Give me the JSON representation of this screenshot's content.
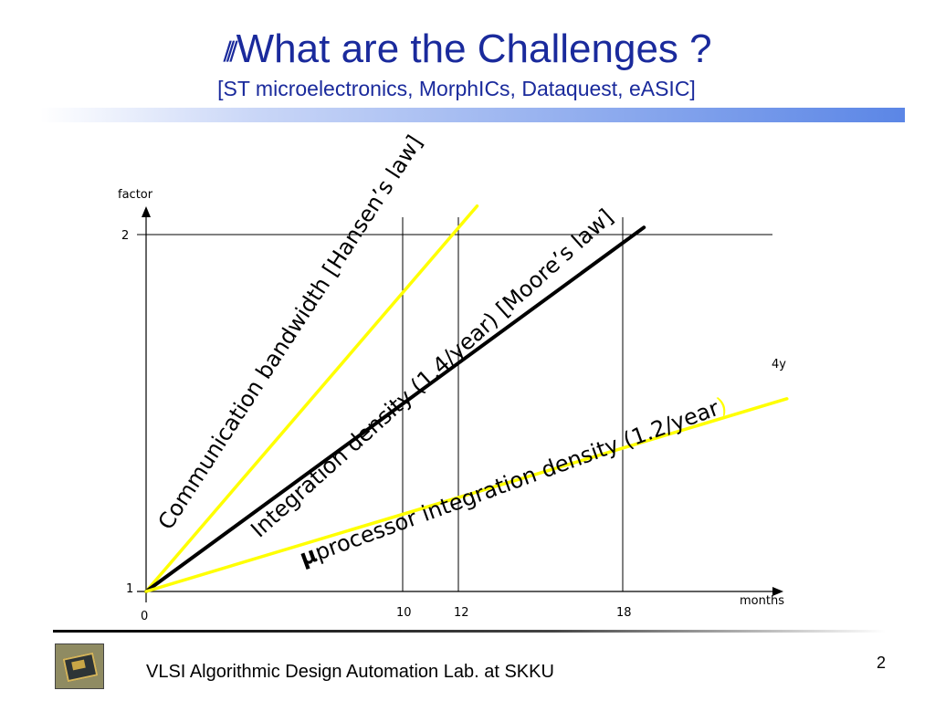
{
  "title": {
    "icon": "triple-slash-bullet-icon",
    "text": "What are the Challenges ?",
    "subtitle": "[ST microelectronics, MorphICs, Dataquest, eASIC]"
  },
  "chart_data": {
    "type": "line",
    "ylabel": "factor",
    "xlabel": "months",
    "x_ticks": [
      "0",
      "10",
      "12",
      "18"
    ],
    "y_ticks": [
      "1",
      "2"
    ],
    "xlim": [
      0,
      24
    ],
    "ylim": [
      1,
      2.1
    ],
    "series": [
      {
        "name": "Communication bandwidth [Hansen’s law]",
        "color": "#ffff00",
        "x": [
          0,
          12.5
        ],
        "y": [
          1,
          2.08
        ]
      },
      {
        "name": "Integration density (1.4/year)  [Moore’s law]",
        "color": "#000000",
        "x": [
          0,
          18.8
        ],
        "y": [
          1,
          2.02
        ]
      },
      {
        "name_mu": "μ",
        "name": "processor integration density (1.2/year",
        "name_close": ")",
        "color": "#ffff00",
        "x": [
          0,
          24.2
        ],
        "y": [
          1,
          1.54
        ]
      }
    ],
    "annotations": [
      "4y"
    ],
    "grid": "vertical lines at 10, 12, 18; horizontal line at 2"
  },
  "footer": {
    "text": "VLSI Algorithmic Design Automation Lab. at SKKU",
    "page_number": "2",
    "logo": "chip-photo"
  }
}
